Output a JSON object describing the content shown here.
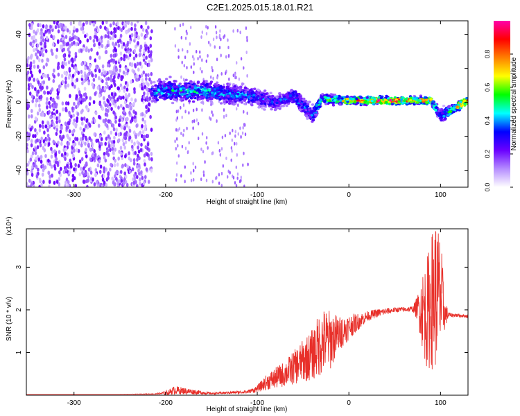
{
  "figure": {
    "title": "C2E1.2025.015.18.01.R21"
  },
  "chart_data": [
    {
      "type": "heatmap",
      "xlabel": "Height of straight line (km)",
      "ylabel": "Frequency (Hz)",
      "xlim": [
        -352,
        130
      ],
      "ylim": [
        -50,
        48
      ],
      "xticks": [
        -300,
        -200,
        -100,
        0,
        100
      ],
      "yticks": [
        -40,
        -20,
        0,
        20,
        40
      ],
      "colorbar": {
        "label": "Normalized spectral amplitude",
        "range": [
          0,
          1
        ],
        "ticks": [
          0.0,
          0.2,
          0.4,
          0.6,
          0.8
        ],
        "colors": [
          "#ffffff",
          "#b58cff",
          "#6a00ff",
          "#0000ff",
          "#00ffff",
          "#00ff00",
          "#ffff00",
          "#ff8000",
          "#ff0000",
          "#ff00aa"
        ]
      },
      "noise_region": {
        "x_range": [
          -352,
          -215
        ],
        "y_range": [
          -50,
          48
        ],
        "amplitude": 0.15
      },
      "ridge": [
        {
          "x": -215,
          "center": 6,
          "width": 8,
          "amplitude": 0.35
        },
        {
          "x": -200,
          "center": 7,
          "width": 9,
          "amplitude": 0.4
        },
        {
          "x": -150,
          "center": 6,
          "width": 8,
          "amplitude": 0.4
        },
        {
          "x": -110,
          "center": 4,
          "width": 7,
          "amplitude": 0.35
        },
        {
          "x": -80,
          "center": 0,
          "width": 6,
          "amplitude": 0.3
        },
        {
          "x": -60,
          "center": 4,
          "width": 6,
          "amplitude": 0.35
        },
        {
          "x": -40,
          "center": -8,
          "width": 8,
          "amplitude": 0.3
        },
        {
          "x": -30,
          "center": 2,
          "width": 4,
          "amplitude": 0.5
        },
        {
          "x": 0,
          "center": 1,
          "width": 3,
          "amplitude": 0.7
        },
        {
          "x": 50,
          "center": 1,
          "width": 3,
          "amplitude": 0.8
        },
        {
          "x": 90,
          "center": 1,
          "width": 3,
          "amplitude": 0.7
        },
        {
          "x": 100,
          "center": -8,
          "width": 6,
          "amplitude": 0.3
        },
        {
          "x": 130,
          "center": 1,
          "width": 3,
          "amplitude": 0.85
        }
      ]
    },
    {
      "type": "line",
      "xlabel": "Height of straight line (km)",
      "ylabel": "SNR (10 * v/v)",
      "y_multiplier": "(x10⁴)",
      "xlim": [
        -352,
        130
      ],
      "ylim": [
        0,
        3.9
      ],
      "xticks": [
        -300,
        -200,
        -100,
        0,
        100
      ],
      "yticks": [
        1,
        2,
        3
      ],
      "color": "#e8302a",
      "series": [
        {
          "x": [
            -352,
            -250,
            -210,
            -200,
            -190,
            -150,
            -110,
            -100,
            -90,
            -80,
            -70,
            -60,
            -50,
            -40,
            -30,
            -20,
            -10,
            0,
            10,
            20,
            30,
            40,
            50,
            60,
            70,
            75,
            80,
            85,
            90,
            95,
            100,
            105,
            110,
            120,
            130
          ],
          "y": [
            0.02,
            0.02,
            0.03,
            0.05,
            0.12,
            0.04,
            0.08,
            0.15,
            0.3,
            0.4,
            0.5,
            0.65,
            0.8,
            0.95,
            1.25,
            1.3,
            1.45,
            1.6,
            1.72,
            1.85,
            1.92,
            1.96,
            2.0,
            2.01,
            2.02,
            2.05,
            2.0,
            1.9,
            2.2,
            2.4,
            2.3,
            1.9,
            1.88,
            1.87,
            1.85
          ],
          "noise": [
            0,
            0,
            0.01,
            0.05,
            0.1,
            0.02,
            0.04,
            0.08,
            0.18,
            0.25,
            0.3,
            0.4,
            0.5,
            0.6,
            0.8,
            0.7,
            0.4,
            0.3,
            0.2,
            0.12,
            0.1,
            0.08,
            0.06,
            0.06,
            0.07,
            0.3,
            0.9,
            1.3,
            1.6,
            1.8,
            1.5,
            0.3,
            0.05,
            0.04,
            0.04
          ]
        }
      ]
    }
  ]
}
